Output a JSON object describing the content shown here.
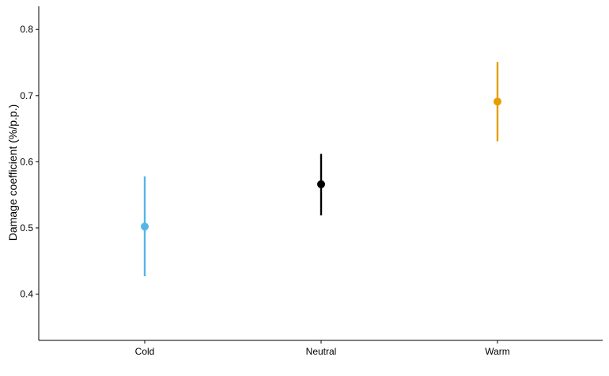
{
  "chart_data": {
    "type": "errorbar",
    "title": "",
    "xlabel": "",
    "ylabel": "Damage coefficient (%/p.p.)",
    "ylim": [
      0.33,
      0.835
    ],
    "yticks": [
      0.4,
      0.5,
      0.6,
      0.7,
      0.8
    ],
    "ytick_labels": [
      "0.4",
      "0.5",
      "0.6",
      "0.7",
      "0.8"
    ],
    "grid": false,
    "legend": "none",
    "categories": [
      "Cold",
      "Neutral",
      "Warm"
    ],
    "points": [
      {
        "category": "Cold",
        "value": 0.502,
        "lower": 0.427,
        "upper": 0.578,
        "color": "#56B4E9"
      },
      {
        "category": "Neutral",
        "value": 0.566,
        "lower": 0.519,
        "upper": 0.612,
        "color": "#000000"
      },
      {
        "category": "Warm",
        "value": 0.691,
        "lower": 0.631,
        "upper": 0.751,
        "color": "#E69F00"
      }
    ]
  }
}
